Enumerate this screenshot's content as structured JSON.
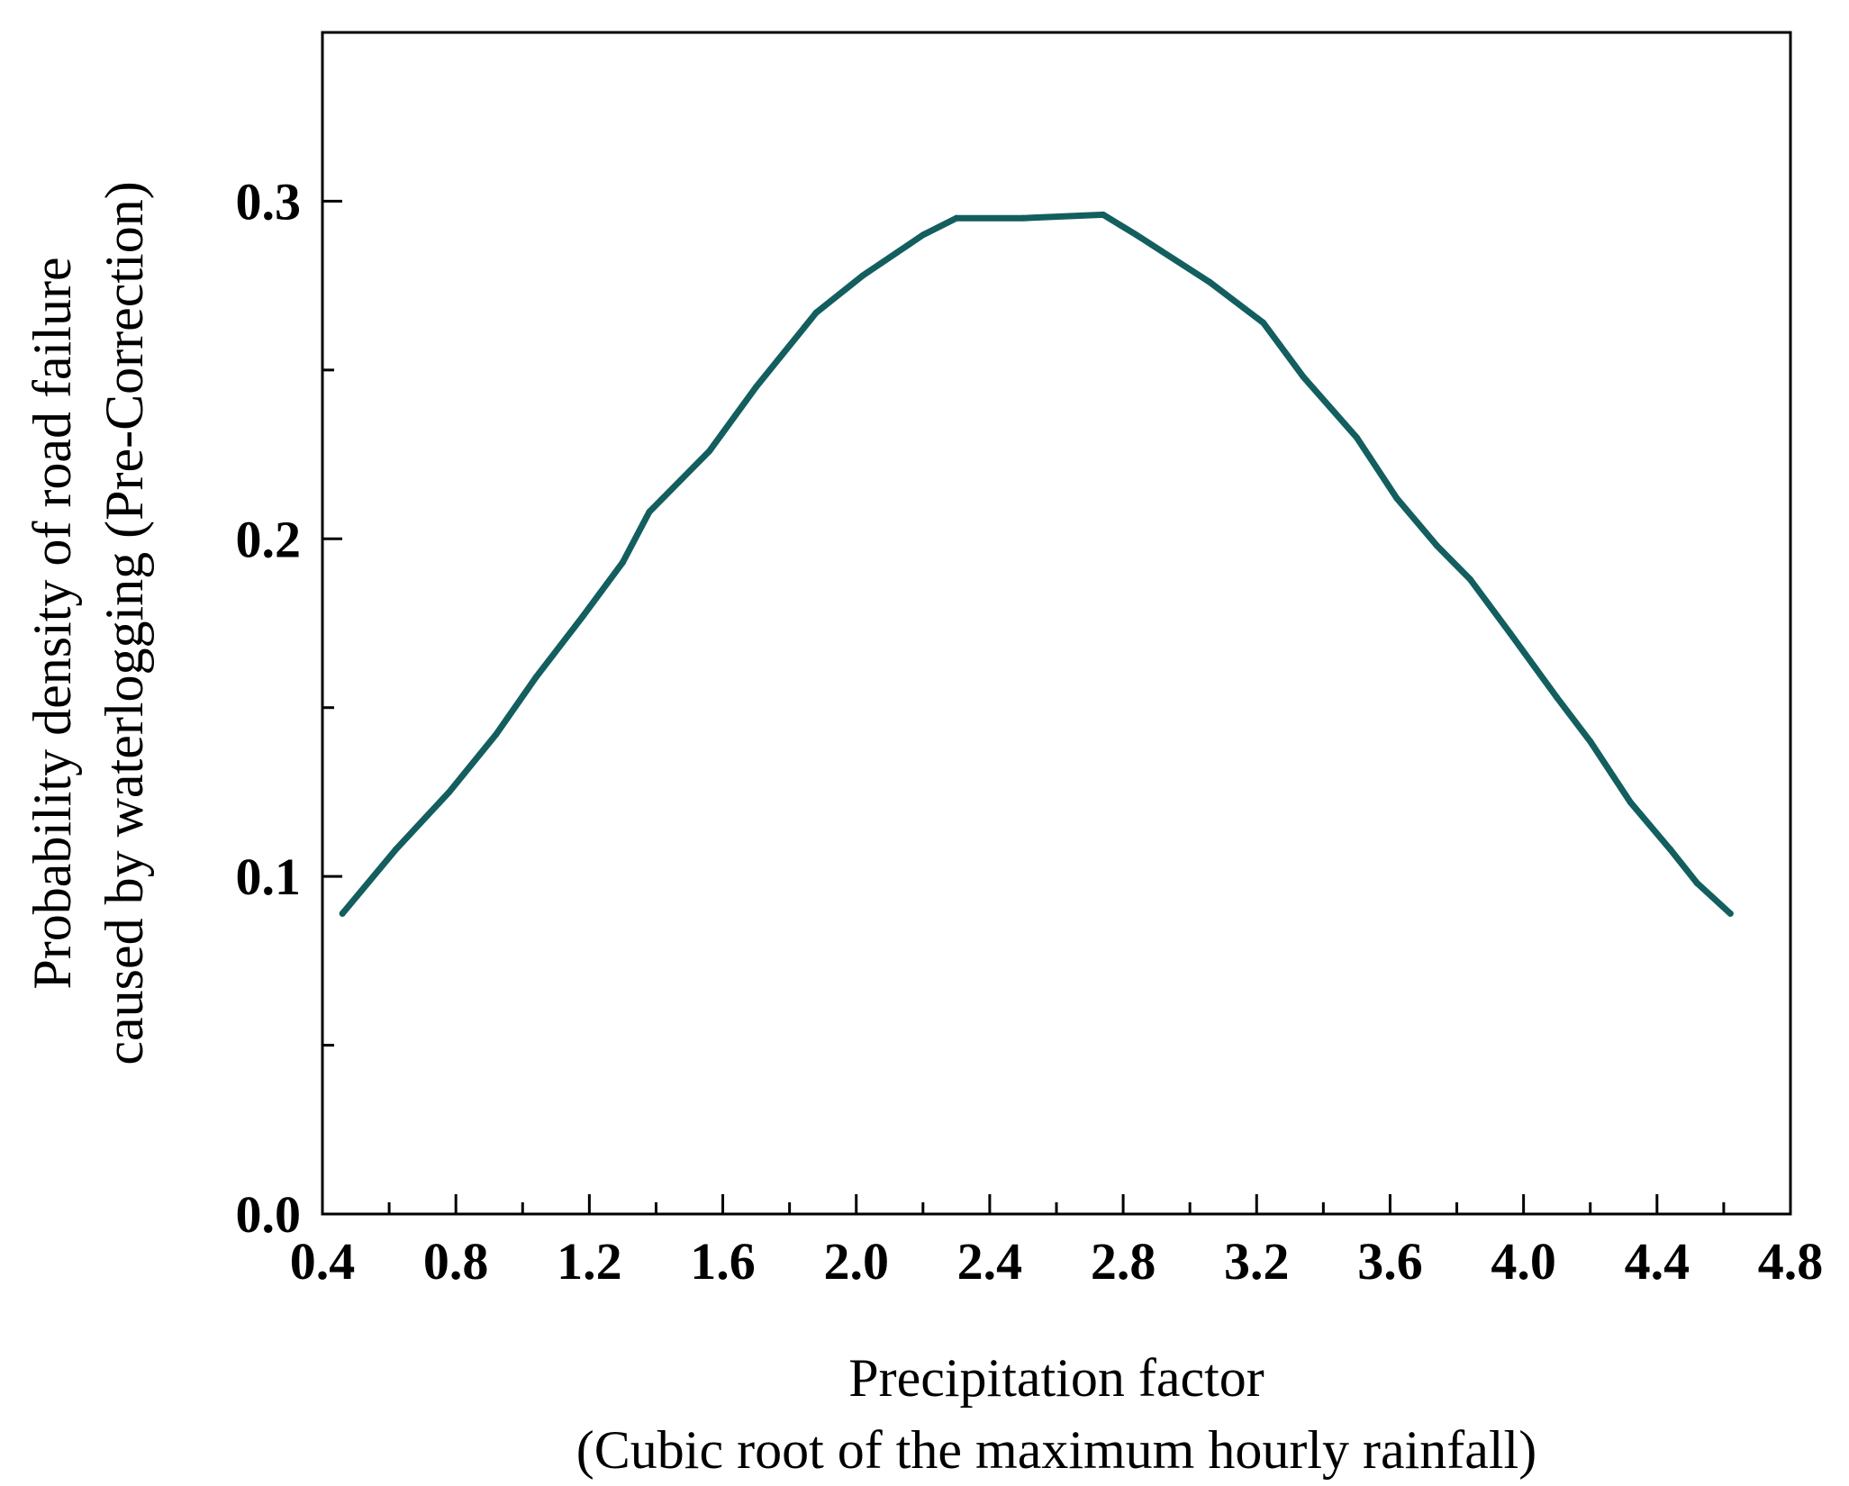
{
  "chart_data": {
    "type": "line",
    "title": "",
    "xlabel": [
      "Precipitation factor",
      "(Cubic root of the maximum hourly rainfall)"
    ],
    "ylabel": [
      "Probability density of road failure",
      "caused by waterlogging (Pre-Correction)"
    ],
    "xlim": [
      0.4,
      4.8
    ],
    "ylim": [
      0.0,
      0.35
    ],
    "xticks": [
      0.4,
      0.8,
      1.2,
      1.6,
      2.0,
      2.4,
      2.8,
      3.2,
      3.6,
      4.0,
      4.4,
      4.8
    ],
    "xtick_labels": [
      "0.4",
      "0.8",
      "1.2",
      "1.6",
      "2.0",
      "2.4",
      "2.8",
      "3.2",
      "3.6",
      "4.0",
      "4.4",
      "4.8"
    ],
    "yticks_major": [
      0.0,
      0.1,
      0.2,
      0.3
    ],
    "ytick_labels": [
      "0.0",
      "0.1",
      "0.2",
      "0.3"
    ],
    "yticks_minor": [
      0.05,
      0.15,
      0.25
    ],
    "grid": false,
    "line_color": "#135e5e",
    "series": [
      {
        "name": "Probability density",
        "x": [
          0.46,
          0.62,
          0.78,
          0.92,
          1.04,
          1.18,
          1.3,
          1.38,
          1.56,
          1.7,
          1.88,
          2.02,
          2.2,
          2.3,
          2.5,
          2.74,
          2.84,
          3.06,
          3.22,
          3.34,
          3.5,
          3.62,
          3.74,
          3.84,
          3.96,
          4.1,
          4.2,
          4.32,
          4.44,
          4.52,
          4.62
        ],
        "y": [
          0.089,
          0.108,
          0.125,
          0.142,
          0.159,
          0.177,
          0.193,
          0.208,
          0.226,
          0.245,
          0.267,
          0.278,
          0.29,
          0.295,
          0.295,
          0.296,
          0.29,
          0.276,
          0.264,
          0.248,
          0.23,
          0.212,
          0.198,
          0.188,
          0.172,
          0.153,
          0.14,
          0.122,
          0.108,
          0.098,
          0.089
        ]
      }
    ]
  }
}
